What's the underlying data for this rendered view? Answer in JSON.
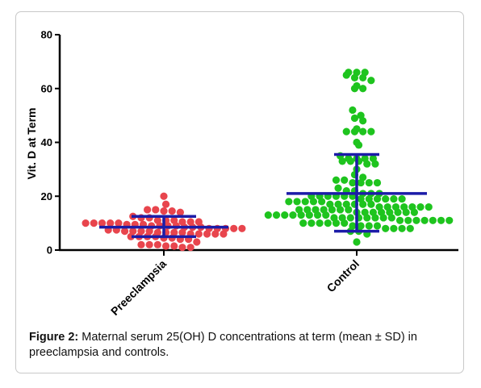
{
  "chart_data": {
    "type": "scatter",
    "subtype": "dot-plot-with-mean-sd",
    "ylabel": "Vit. D at Term",
    "ylim": [
      0,
      80
    ],
    "yticks": [
      0,
      20,
      40,
      60,
      80
    ],
    "categories": [
      "Preeclampsia",
      "Control"
    ],
    "series": [
      {
        "name": "Preeclampsia",
        "color": "#e8454d",
        "mean": 8.5,
        "sd_upper": 12.5,
        "sd_lower": 5,
        "values": [
          20,
          17,
          15,
          15,
          14.5,
          14.5,
          14,
          12.5,
          12,
          12,
          11,
          11,
          11,
          10.5,
          10.5,
          10.5,
          10,
          10,
          10,
          10,
          10,
          9.5,
          9.5,
          9.5,
          9,
          9,
          9,
          9,
          8.5,
          8.5,
          8.5,
          8,
          8,
          8,
          8,
          8,
          7.5,
          7.5,
          7,
          7,
          7,
          7,
          6.5,
          6.5,
          6.5,
          6.5,
          6,
          6,
          6,
          6,
          6,
          5,
          5,
          5,
          5,
          4.5,
          4.5,
          4,
          4,
          3,
          2,
          2,
          2,
          1.5,
          1.5,
          1,
          1
        ]
      },
      {
        "name": "Control",
        "color": "#1ec41e",
        "mean": 21,
        "sd_upper": 35.5,
        "sd_lower": 7,
        "values": [
          66,
          66,
          66,
          65,
          64,
          64,
          63,
          61,
          60,
          60,
          52,
          50,
          49,
          48,
          45,
          44,
          44,
          44,
          44,
          40,
          39,
          35,
          34,
          34,
          34,
          34,
          33,
          33,
          33,
          32,
          32,
          30,
          28,
          27,
          26,
          26,
          25,
          25,
          25,
          25,
          23,
          22,
          22,
          21,
          21,
          21,
          20,
          20,
          20,
          20,
          20,
          20,
          19,
          19,
          19,
          19,
          19,
          19,
          18,
          18,
          18,
          18,
          18,
          17,
          17,
          17,
          17,
          17,
          17,
          16,
          16,
          16,
          16,
          16,
          16,
          16,
          15,
          15,
          15,
          15,
          15,
          15,
          15,
          14,
          14,
          14,
          14,
          14,
          14,
          14,
          14,
          13,
          13,
          13,
          13,
          13,
          13,
          13,
          13,
          12,
          12,
          12,
          12,
          12,
          12,
          12,
          12,
          11,
          11,
          11,
          11,
          11,
          11,
          11,
          10,
          10,
          10,
          10,
          10,
          10,
          9,
          9,
          9,
          9,
          8,
          8,
          8,
          8,
          7,
          7,
          6,
          3
        ]
      }
    ],
    "errorbar_color": "#1c1ca8"
  },
  "caption": {
    "label": "Figure 2:",
    "text": " Maternal serum 25(OH) D concentrations at term (mean ± SD) in preeclampsia and controls."
  }
}
